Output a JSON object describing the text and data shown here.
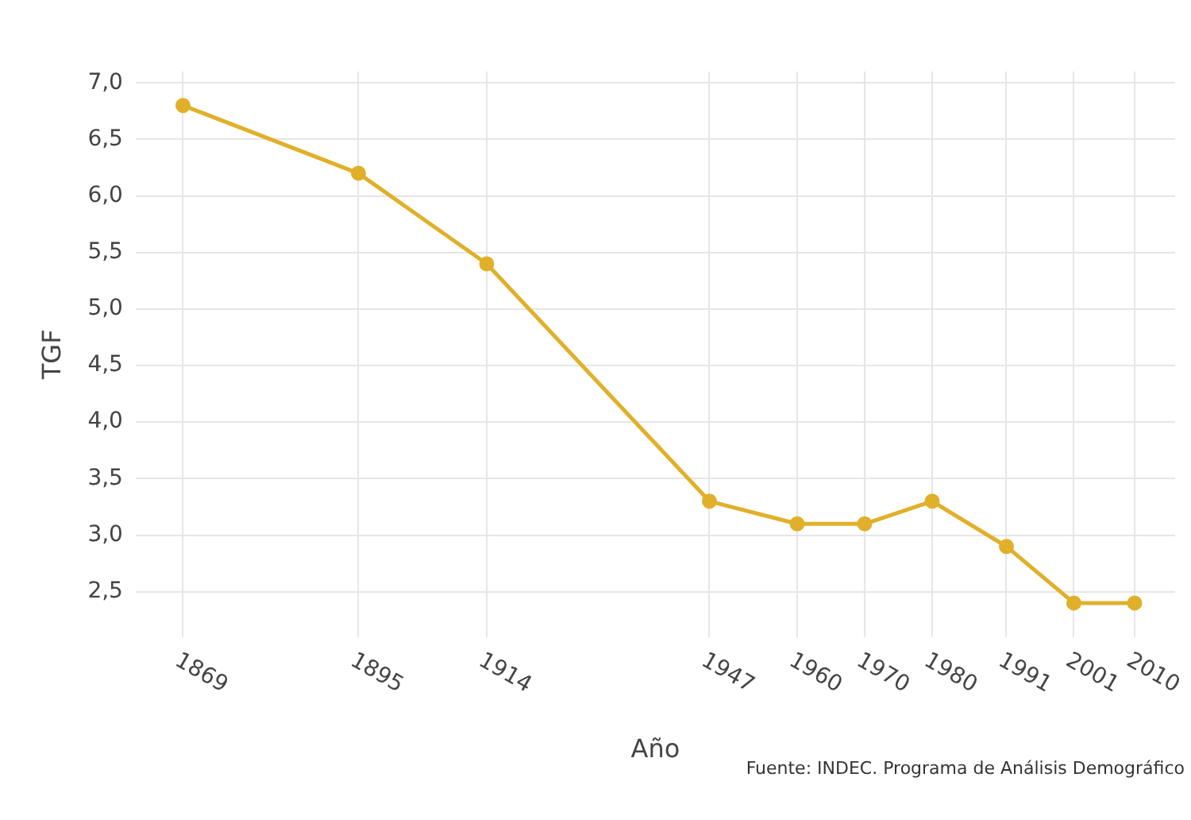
{
  "chart_data": {
    "type": "line",
    "xlabel": "Año",
    "ylabel": "TGF",
    "x": [
      1869,
      1895,
      1914,
      1947,
      1960,
      1970,
      1980,
      1991,
      2001,
      2010
    ],
    "series": [
      {
        "color": "#e0b02a",
        "values": [
          6.8,
          6.2,
          5.4,
          3.3,
          3.1,
          3.1,
          3.3,
          2.9,
          2.4,
          2.4
        ]
      }
    ],
    "xlim": [
      1862,
      2016
    ],
    "xticks": [
      1869,
      1895,
      1914,
      1947,
      1960,
      1970,
      1980,
      1991,
      2001,
      2010
    ],
    "ylim": [
      2.1,
      7.1
    ],
    "yticks": [
      {
        "value": 2.5,
        "label": "2,5"
      },
      {
        "value": 3,
        "label": "3,0"
      },
      {
        "value": 3.5,
        "label": "3,5"
      },
      {
        "value": 4,
        "label": "4,0"
      },
      {
        "value": 4.5,
        "label": "4,5"
      },
      {
        "value": 5,
        "label": "5,0"
      },
      {
        "value": 5.5,
        "label": "5,5"
      },
      {
        "value": 6,
        "label": "6,0"
      },
      {
        "value": 6.5,
        "label": "6,5"
      },
      {
        "value": 7,
        "label": "7,0"
      }
    ],
    "grid": true,
    "marker": "circle",
    "line_style": "solid",
    "legend": false,
    "annotations": [
      "Fuente: INDEC. Programa de Análisis Demográfico"
    ]
  }
}
